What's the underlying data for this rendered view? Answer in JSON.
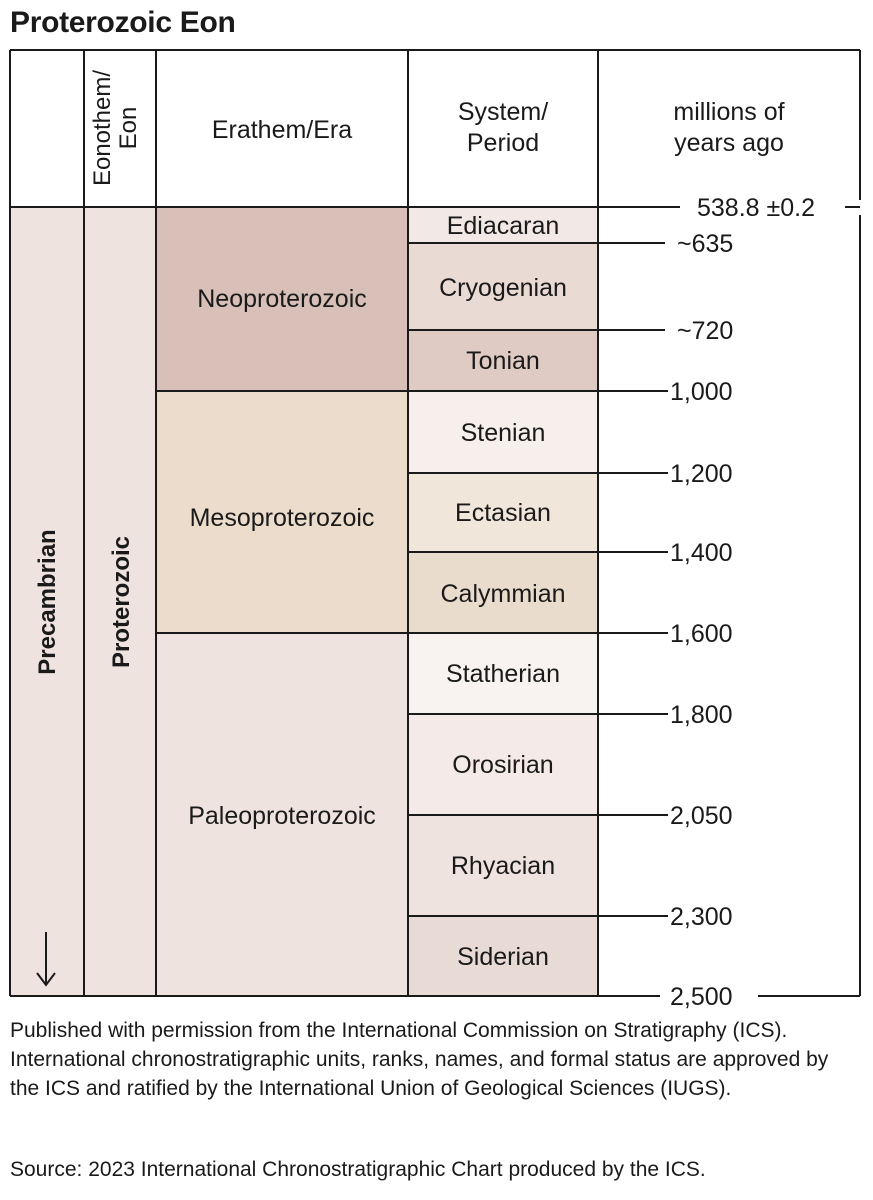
{
  "title": "Proterozoic Eon",
  "headers": {
    "eonothem": [
      "Eonothem/",
      "Eon"
    ],
    "erathem": "Erathem/Era",
    "system": [
      "System/",
      "Period"
    ],
    "age": [
      "millions of",
      "years ago"
    ]
  },
  "supereon": "Precambrian",
  "eon": "Proterozoic",
  "eras": [
    {
      "name": "Neoproterozoic",
      "color": "#d8c0b8"
    },
    {
      "name": "Mesoproterozoic",
      "color": "#ecdccc"
    },
    {
      "name": "Paleoproterozoic",
      "color": "#efe3df"
    }
  ],
  "periods": [
    {
      "name": "Ediacaran",
      "color": "#f2e8e5"
    },
    {
      "name": "Cryogenian",
      "color": "#e9dad4"
    },
    {
      "name": "Tonian",
      "color": "#dfcbc4"
    },
    {
      "name": "Stenian",
      "color": "#f7efeb"
    },
    {
      "name": "Ectasian",
      "color": "#f1e6da"
    },
    {
      "name": "Calymmian",
      "color": "#e9dccc"
    },
    {
      "name": "Statherian",
      "color": "#f8f2f0"
    },
    {
      "name": "Orosirian",
      "color": "#f4ebe8"
    },
    {
      "name": "Rhyacian",
      "color": "#eee3df"
    },
    {
      "name": "Siderian",
      "color": "#e8dbd6"
    }
  ],
  "boundaries": [
    "538.8 ±0.2",
    "~635",
    "~720",
    "1,000",
    "1,200",
    "1,400",
    "1,600",
    "1,800",
    "2,050",
    "2,300",
    "2,500"
  ],
  "colors": {
    "supereon": "#efe3df",
    "eon": "#efe3df",
    "line": "#1a1a1a"
  },
  "footnote": "Published with permission from the International Commission on Stratigraphy (ICS). International chronostratigraphic units, ranks, names, and formal status are approved by the ICS and ratified by the International Union of Geological Sciences (IUGS).",
  "source": "Source: 2023 International Chronostratigraphic Chart produced by the ICS.",
  "icons": {
    "arrow": "down-arrow-icon"
  }
}
